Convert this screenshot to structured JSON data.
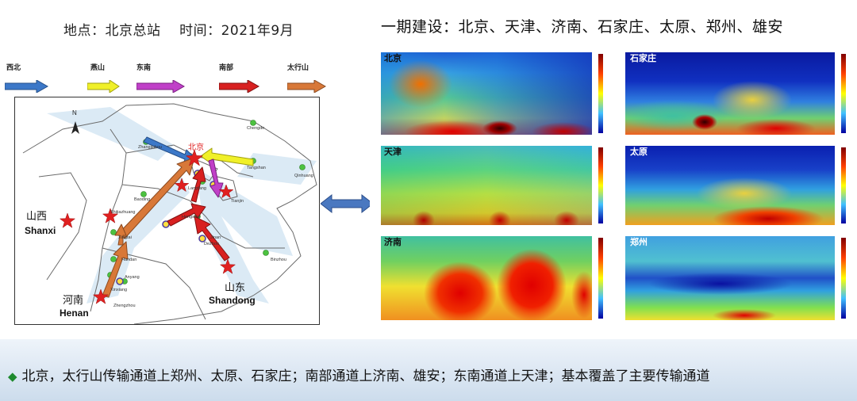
{
  "header": {
    "location_time": "地点：北京总站    时间：2021年9月",
    "phase_title": "一期建设：北京、天津、济南、石家庄、太原、郑州、雄安"
  },
  "legend": [
    {
      "label": "西北",
      "color": "#3c78c8"
    },
    {
      "label": "燕山",
      "color": "#f0f028"
    },
    {
      "label": "东南",
      "color": "#c040c8"
    },
    {
      "label": "南部",
      "color": "#d82020"
    },
    {
      "label": "太行山",
      "color": "#d87838"
    }
  ],
  "map": {
    "north_mark": "N",
    "provinces": [
      {
        "cn": "山西",
        "en": "Shanxi"
      },
      {
        "cn": "山东",
        "en": "Shandong"
      },
      {
        "cn": "河南",
        "en": "Henan"
      }
    ],
    "beijing_label": "北京",
    "city_labels": [
      "Chengde",
      "Zhangjiakou",
      "Tangshan",
      "Qinhuang",
      "Langfang",
      "Tianjin",
      "Baoding",
      "Shijiazhuang",
      "Hengshui",
      "Xingtai",
      "Handan",
      "Dezhou",
      "Jinan",
      "Binzhou",
      "Anyang",
      "Xinxiang",
      "Zhengzhou"
    ]
  },
  "panels": [
    {
      "label": "北京",
      "white": false
    },
    {
      "label": "石家庄",
      "white": true
    },
    {
      "label": "天津",
      "white": false
    },
    {
      "label": "太原",
      "white": true
    },
    {
      "label": "济南",
      "white": false
    },
    {
      "label": "郑州",
      "white": true
    }
  ],
  "footer": {
    "bullet_icon": "diamond-bullet",
    "text": "北京，太行山传输通道上郑州、太原、石家庄；南部通道上济南、雄安；东南通道上天津；基本覆盖了主要传输通道"
  },
  "colors": {
    "heatmap_low": "#1030c0",
    "heatmap_high": "#c00000",
    "link_arrow": "#4a78c0",
    "footer_bullet": "#1e8a2e"
  }
}
